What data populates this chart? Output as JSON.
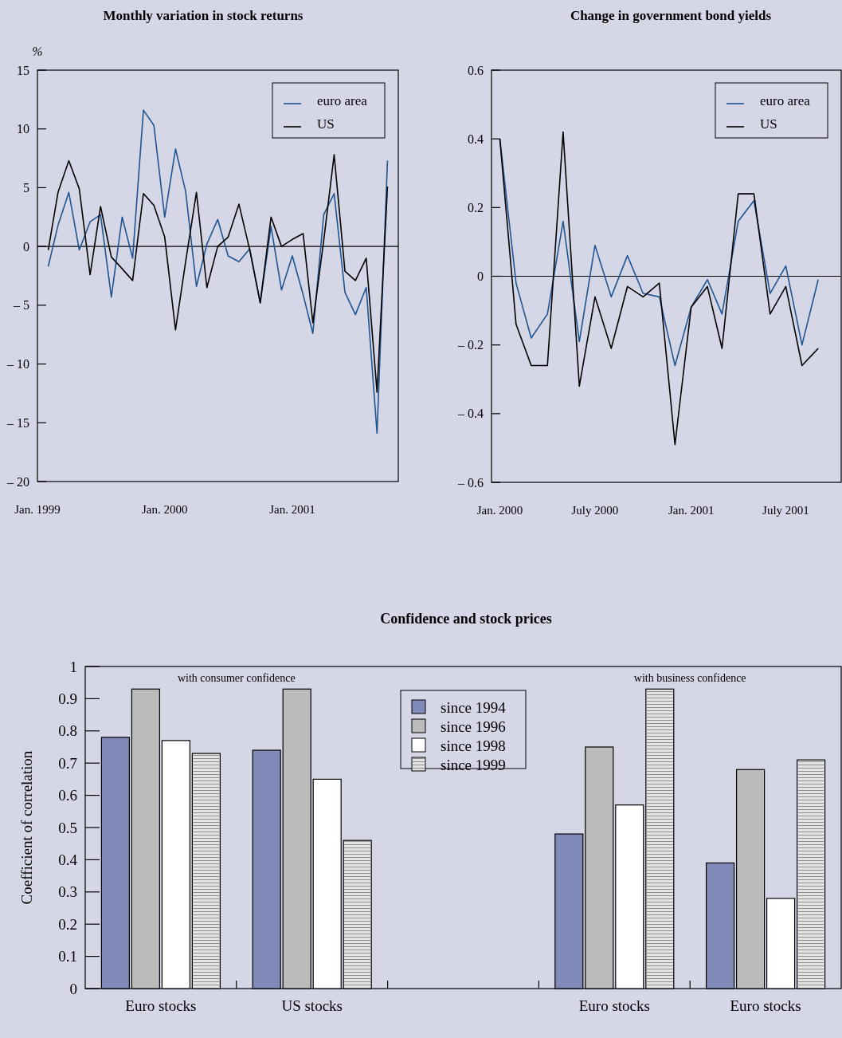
{
  "chart_data": [
    {
      "type": "line",
      "title": "Monthly variation in stock returns",
      "ylabel": "%",
      "x": [
        "1999-02",
        "1999-03",
        "1999-04",
        "1999-05",
        "1999-06",
        "1999-07",
        "1999-08",
        "1999-09",
        "1999-10",
        "1999-11",
        "1999-12",
        "2000-01",
        "2000-02",
        "2000-03",
        "2000-04",
        "2000-05",
        "2000-06",
        "2000-07",
        "2000-08",
        "2000-09",
        "2000-10",
        "2000-11",
        "2000-12",
        "2001-01",
        "2001-02",
        "2001-03",
        "2001-04",
        "2001-05",
        "2001-06",
        "2001-07",
        "2001-08",
        "2001-09",
        "2001-10"
      ],
      "series": [
        {
          "name": "euro area",
          "color": "#1f5591",
          "values": [
            -1.7,
            1.8,
            4.6,
            -0.3,
            2.1,
            2.7,
            -4.3,
            2.5,
            -1.0,
            11.6,
            10.3,
            2.5,
            8.3,
            4.7,
            -3.4,
            0.2,
            2.3,
            -0.8,
            -1.3,
            -0.2,
            -4.8,
            1.7,
            -3.7,
            -0.8,
            -4.1,
            -7.4,
            2.7,
            4.5,
            -3.9,
            -5.8,
            -3.5,
            -15.9,
            7.3
          ]
        },
        {
          "name": "US",
          "color": "#000000",
          "values": [
            -0.3,
            4.6,
            7.3,
            4.9,
            -2.4,
            3.4,
            -0.9,
            -1.9,
            -2.9,
            4.5,
            3.5,
            0.8,
            -7.1,
            -1.3,
            4.6,
            -3.5,
            0,
            0.8,
            3.6,
            -0.3,
            -4.8,
            2.5,
            0,
            0.6,
            1.1,
            -6.5,
            0.5,
            7.8,
            -2.1,
            -2.9,
            -1.0,
            -12.4,
            5.1
          ]
        }
      ],
      "xlim": [
        "1999-01",
        "2001-11"
      ],
      "xticks": [
        {
          "value": "1999-01",
          "label": "Jan. 1999"
        },
        {
          "value": "2000-01",
          "label": "Jan. 2000"
        },
        {
          "value": "2001-01",
          "label": "Jan. 2001"
        }
      ],
      "ylim": [
        -20,
        15
      ],
      "yticks": [
        {
          "value": -20,
          "label": "– 20"
        },
        {
          "value": -15,
          "label": "– 15"
        },
        {
          "value": -10,
          "label": "– 10"
        },
        {
          "value": -5,
          "label": "– 5"
        },
        0,
        5,
        10,
        15
      ],
      "ref_lines": [
        {
          "axis": "y",
          "value": 0
        }
      ],
      "legend": "top right"
    },
    {
      "type": "line",
      "title": "Change in government bond yields",
      "x": [
        "2000-01",
        "2000-02",
        "2000-03",
        "2000-04",
        "2000-05",
        "2000-06",
        "2000-07",
        "2000-08",
        "2000-09",
        "2000-10",
        "2000-11",
        "2000-12",
        "2001-01",
        "2001-02",
        "2001-03",
        "2001-04",
        "2001-05",
        "2001-06",
        "2001-07",
        "2001-08",
        "2001-09"
      ],
      "series": [
        {
          "name": "euro area",
          "color": "#1f5591",
          "values": [
            0.4,
            -0.02,
            -0.18,
            -0.11,
            0.16,
            -0.19,
            0.09,
            -0.06,
            0.06,
            -0.05,
            -0.06,
            -0.26,
            -0.09,
            -0.01,
            -0.11,
            0.16,
            0.22,
            -0.05,
            0.03,
            -0.2,
            -0.01
          ]
        },
        {
          "name": "US",
          "color": "#000000",
          "values": [
            0.4,
            -0.14,
            -0.26,
            -0.26,
            0.42,
            -0.32,
            -0.06,
            -0.21,
            -0.03,
            -0.06,
            -0.02,
            -0.49,
            -0.09,
            -0.03,
            -0.21,
            0.24,
            0.24,
            -0.11,
            -0.03,
            -0.26,
            -0.21
          ]
        }
      ],
      "xlim": [
        "1999-12-16",
        "2001-10-15"
      ],
      "xticks": [
        {
          "value": "2000-01",
          "label": "Jan. 2000"
        },
        {
          "value": "2000-07",
          "label": "July 2000"
        },
        {
          "value": "2001-01",
          "label": "Jan. 2001"
        },
        {
          "value": "2001-07",
          "label": "July 2001"
        }
      ],
      "ylim": [
        -0.6,
        0.6
      ],
      "yticks": [
        {
          "value": -0.6,
          "label": "– 0.6"
        },
        {
          "value": -0.4,
          "label": "– 0.4"
        },
        {
          "value": -0.2,
          "label": "– 0.2"
        },
        0,
        0.2,
        0.4,
        0.6
      ],
      "ref_lines": [
        {
          "axis": "y",
          "value": 0
        }
      ],
      "legend": "top right"
    },
    {
      "type": "bar",
      "title": "Confidence and stock prices",
      "ylabel": "Coefficient of correlation",
      "categories": [
        "Euro stocks",
        "US stocks",
        null,
        "Euro stocks",
        "Euro stocks"
      ],
      "series": [
        {
          "name": "since 1994",
          "color": "#7f8ab8",
          "values": [
            0.78,
            0.74,
            null,
            0.48,
            0.39
          ]
        },
        {
          "name": "since 1996",
          "color": "#bbbbbb",
          "values": [
            0.93,
            0.93,
            null,
            0.75,
            0.68
          ]
        },
        {
          "name": "since 1998",
          "color": "#ffffff",
          "values": [
            0.77,
            0.65,
            null,
            0.57,
            0.28
          ]
        },
        {
          "name": "since 1999",
          "color": "#e4e4e4",
          "values": [
            0.73,
            0.46,
            null,
            0.93,
            0.71
          ]
        }
      ],
      "ylim": [
        0,
        1
      ],
      "yticks": [
        0,
        0.1,
        0.2,
        0.3,
        0.4,
        0.5,
        0.6,
        0.7,
        0.8,
        0.9,
        1
      ],
      "annotations": [
        "with consumer confidence",
        "with business confidence"
      ],
      "legend": "top"
    }
  ]
}
